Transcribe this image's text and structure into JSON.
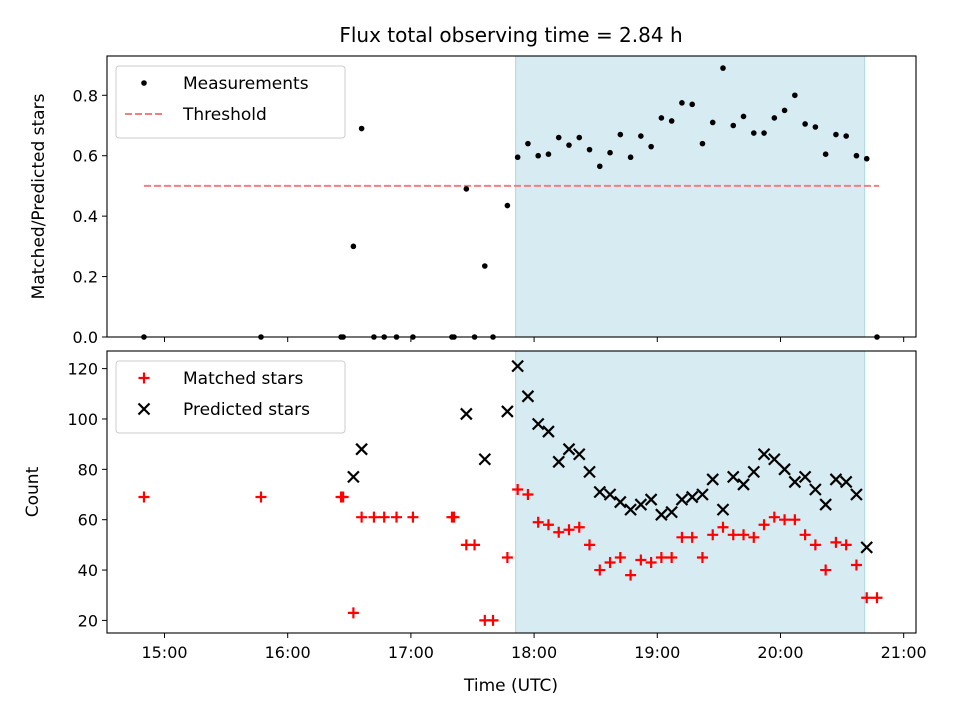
{
  "figure": {
    "title": "Flux total observing time = 2.84 h",
    "xlabel": "Time (UTC)"
  },
  "colors": {
    "highlight": "#add8e6",
    "measurements": "#000000",
    "threshold": "#f08080",
    "matched": "#ff0000",
    "predicted": "#000000"
  },
  "chart_data": [
    {
      "type": "scatter",
      "ylabel": "Matched/Predicted stars",
      "xlim": [
        "14:32",
        "21:06"
      ],
      "ylim": [
        0,
        0.93
      ],
      "grid": false,
      "legend_position": "top-left",
      "x_ticks": [
        "15:00",
        "16:00",
        "17:00",
        "18:00",
        "19:00",
        "20:00",
        "21:00"
      ],
      "y_ticks": [
        0.0,
        0.2,
        0.4,
        0.6,
        0.8
      ],
      "shaded_region": [
        "17:51",
        "20:41"
      ],
      "threshold": {
        "name": "Threshold",
        "y": 0.5,
        "x_range": [
          "14:50",
          "20:48"
        ]
      },
      "series": [
        {
          "name": "Measurements",
          "points": [
            [
              "14:50",
              0.0
            ],
            [
              "15:47",
              0.0
            ],
            [
              "16:26",
              0.0
            ],
            [
              "16:27",
              0.0
            ],
            [
              "16:32",
              0.3
            ],
            [
              "16:36",
              0.69
            ],
            [
              "16:42",
              0.0
            ],
            [
              "16:47",
              0.0
            ],
            [
              "16:53",
              0.0
            ],
            [
              "17:01",
              0.0
            ],
            [
              "17:20",
              0.0
            ],
            [
              "17:21",
              0.0
            ],
            [
              "17:27",
              0.49
            ],
            [
              "17:31",
              0.0
            ],
            [
              "17:36",
              0.235
            ],
            [
              "17:40",
              0.0
            ],
            [
              "17:47",
              0.435
            ],
            [
              "17:52",
              0.595
            ],
            [
              "17:57",
              0.64
            ],
            [
              "18:02",
              0.6
            ],
            [
              "18:07",
              0.605
            ],
            [
              "18:12",
              0.66
            ],
            [
              "18:17",
              0.635
            ],
            [
              "18:22",
              0.66
            ],
            [
              "18:27",
              0.62
            ],
            [
              "18:32",
              0.565
            ],
            [
              "18:37",
              0.61
            ],
            [
              "18:42",
              0.67
            ],
            [
              "18:47",
              0.595
            ],
            [
              "18:52",
              0.665
            ],
            [
              "18:57",
              0.63
            ],
            [
              "19:02",
              0.725
            ],
            [
              "19:07",
              0.715
            ],
            [
              "19:12",
              0.775
            ],
            [
              "19:17",
              0.77
            ],
            [
              "19:22",
              0.64
            ],
            [
              "19:27",
              0.71
            ],
            [
              "19:32",
              0.89
            ],
            [
              "19:37",
              0.7
            ],
            [
              "19:42",
              0.73
            ],
            [
              "19:47",
              0.675
            ],
            [
              "19:52",
              0.675
            ],
            [
              "19:57",
              0.725
            ],
            [
              "20:02",
              0.75
            ],
            [
              "20:07",
              0.8
            ],
            [
              "20:12",
              0.705
            ],
            [
              "20:17",
              0.695
            ],
            [
              "20:22",
              0.605
            ],
            [
              "20:27",
              0.67
            ],
            [
              "20:32",
              0.665
            ],
            [
              "20:37",
              0.6
            ],
            [
              "20:42",
              0.59
            ],
            [
              "20:47",
              0.0
            ]
          ]
        }
      ]
    },
    {
      "type": "scatter",
      "ylabel": "Count",
      "xlabel": "Time (UTC)",
      "xlim": [
        "14:32",
        "21:06"
      ],
      "ylim": [
        15,
        127
      ],
      "grid": false,
      "legend_position": "top-left",
      "x_ticks": [
        "15:00",
        "16:00",
        "17:00",
        "18:00",
        "19:00",
        "20:00",
        "21:00"
      ],
      "y_ticks": [
        20,
        40,
        60,
        80,
        100,
        120
      ],
      "shaded_region": [
        "17:51",
        "20:41"
      ],
      "series": [
        {
          "name": "Matched stars",
          "marker": "plus",
          "points": [
            [
              "14:50",
              69
            ],
            [
              "15:47",
              69
            ],
            [
              "16:26",
              69
            ],
            [
              "16:27",
              69
            ],
            [
              "16:32",
              23
            ],
            [
              "16:36",
              61
            ],
            [
              "16:42",
              61
            ],
            [
              "16:47",
              61
            ],
            [
              "16:53",
              61
            ],
            [
              "17:01",
              61
            ],
            [
              "17:20",
              61
            ],
            [
              "17:21",
              61
            ],
            [
              "17:27",
              50
            ],
            [
              "17:31",
              50
            ],
            [
              "17:36",
              20
            ],
            [
              "17:40",
              20
            ],
            [
              "17:47",
              45
            ],
            [
              "17:52",
              72
            ],
            [
              "17:57",
              70
            ],
            [
              "18:02",
              59
            ],
            [
              "18:07",
              58
            ],
            [
              "18:12",
              55
            ],
            [
              "18:17",
              56
            ],
            [
              "18:22",
              57
            ],
            [
              "18:27",
              50
            ],
            [
              "18:32",
              40
            ],
            [
              "18:37",
              43
            ],
            [
              "18:42",
              45
            ],
            [
              "18:47",
              38
            ],
            [
              "18:52",
              44
            ],
            [
              "18:57",
              43
            ],
            [
              "19:02",
              45
            ],
            [
              "19:07",
              45
            ],
            [
              "19:12",
              53
            ],
            [
              "19:17",
              53
            ],
            [
              "19:22",
              45
            ],
            [
              "19:27",
              54
            ],
            [
              "19:32",
              57
            ],
            [
              "19:37",
              54
            ],
            [
              "19:42",
              54
            ],
            [
              "19:47",
              53
            ],
            [
              "19:52",
              58
            ],
            [
              "19:57",
              61
            ],
            [
              "20:02",
              60
            ],
            [
              "20:07",
              60
            ],
            [
              "20:12",
              54
            ],
            [
              "20:17",
              50
            ],
            [
              "20:22",
              40
            ],
            [
              "20:27",
              51
            ],
            [
              "20:32",
              50
            ],
            [
              "20:37",
              42
            ],
            [
              "20:42",
              29
            ],
            [
              "20:47",
              29
            ]
          ]
        },
        {
          "name": "Predicted stars",
          "marker": "x",
          "points": [
            [
              "16:32",
              77
            ],
            [
              "16:36",
              88
            ],
            [
              "17:27",
              102
            ],
            [
              "17:36",
              84
            ],
            [
              "17:47",
              103
            ],
            [
              "17:52",
              121
            ],
            [
              "17:57",
              109
            ],
            [
              "18:02",
              98
            ],
            [
              "18:07",
              95
            ],
            [
              "18:12",
              83
            ],
            [
              "18:17",
              88
            ],
            [
              "18:22",
              86
            ],
            [
              "18:27",
              79
            ],
            [
              "18:32",
              71
            ],
            [
              "18:37",
              70
            ],
            [
              "18:42",
              67
            ],
            [
              "18:47",
              64
            ],
            [
              "18:52",
              66
            ],
            [
              "18:57",
              68
            ],
            [
              "19:02",
              62
            ],
            [
              "19:07",
              63
            ],
            [
              "19:12",
              68
            ],
            [
              "19:17",
              69
            ],
            [
              "19:22",
              70
            ],
            [
              "19:27",
              76
            ],
            [
              "19:32",
              64
            ],
            [
              "19:37",
              77
            ],
            [
              "19:42",
              74
            ],
            [
              "19:47",
              79
            ],
            [
              "19:52",
              86
            ],
            [
              "19:57",
              84
            ],
            [
              "20:02",
              80
            ],
            [
              "20:07",
              75
            ],
            [
              "20:12",
              77
            ],
            [
              "20:17",
              72
            ],
            [
              "20:22",
              66
            ],
            [
              "20:27",
              76
            ],
            [
              "20:32",
              75
            ],
            [
              "20:37",
              70
            ],
            [
              "20:42",
              49
            ]
          ]
        }
      ]
    }
  ]
}
